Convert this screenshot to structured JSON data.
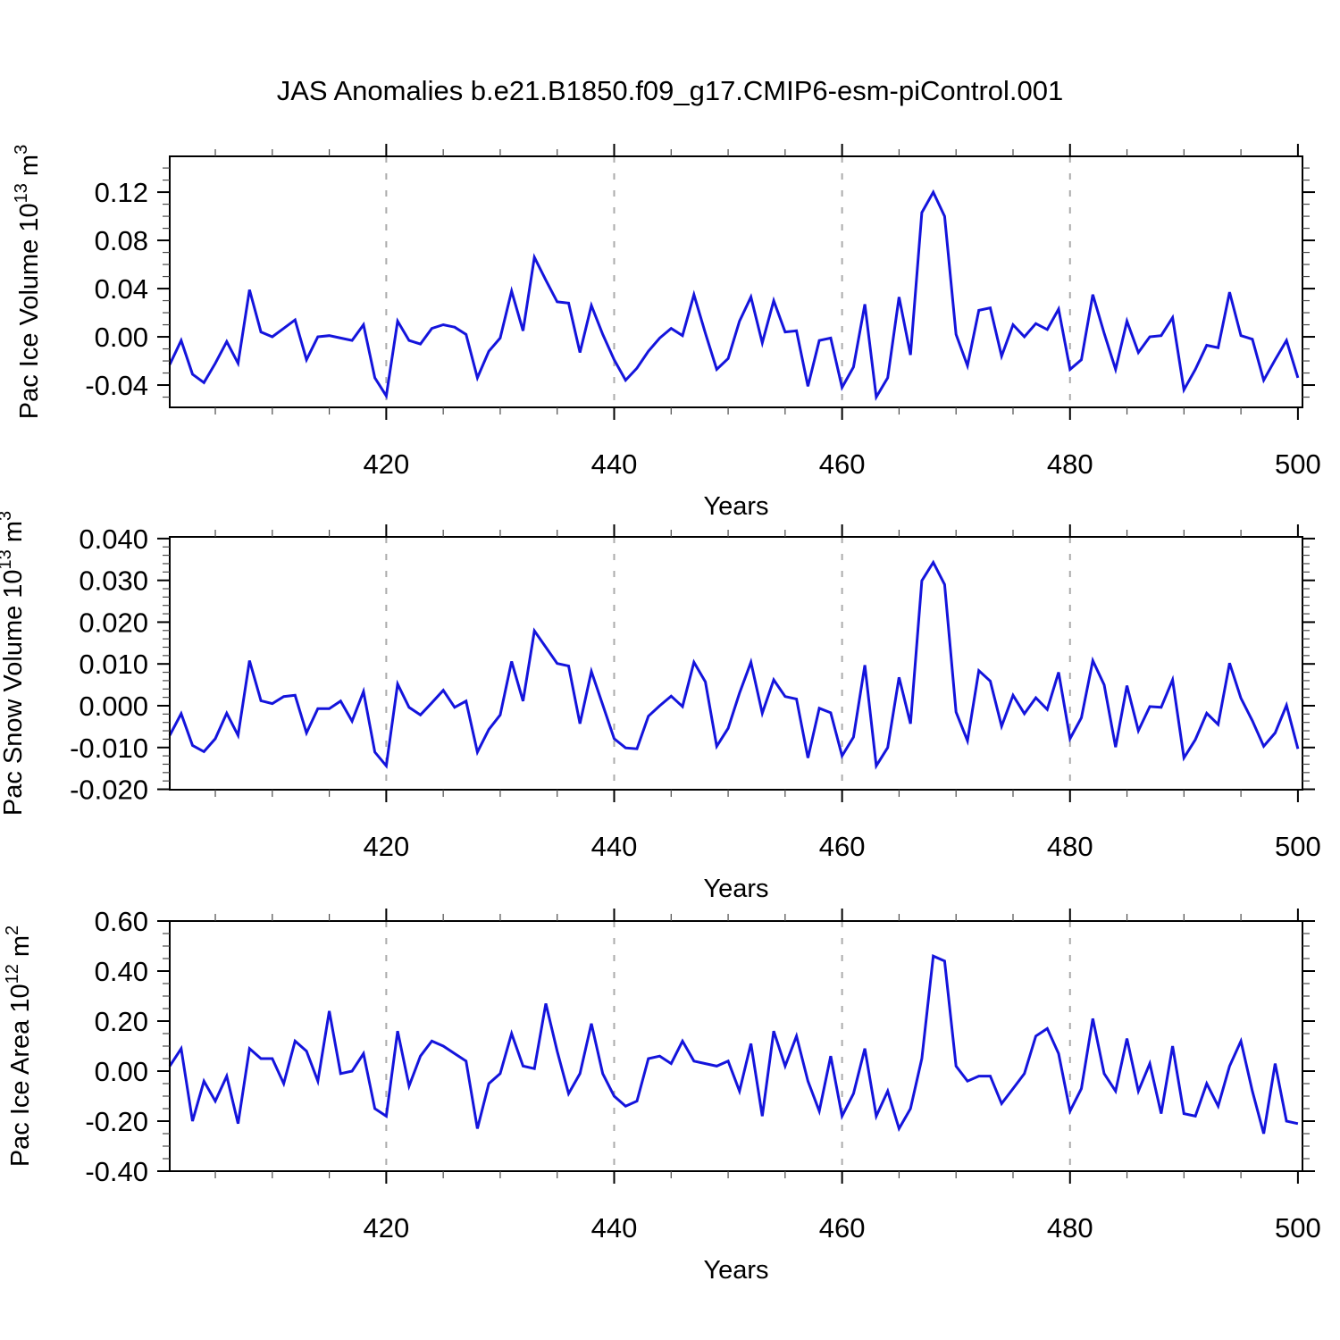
{
  "title": "JAS Anomalies b.e21.B1850.f09_g17.CMIP6-esm-piControl.001",
  "colors": {
    "line": "#1414dc",
    "grid": "#ababab",
    "axis": "#000000"
  },
  "chart_data": {
    "type": "line",
    "title": "JAS Anomalies b.e21.B1850.f09_g17.CMIP6-esm-piControl.001",
    "x_label": "Years",
    "legend": "none",
    "x_ticks": {
      "values": [
        420,
        440,
        460,
        480,
        500
      ],
      "labels": [
        "420",
        "440",
        "460",
        "480",
        "500"
      ],
      "minor_step": 5
    },
    "x_gridlines": [
      420,
      440,
      460,
      480
    ],
    "xlim": [
      401,
      500.4
    ],
    "x": [
      401,
      402,
      403,
      404,
      405,
      406,
      407,
      408,
      409,
      410,
      411,
      412,
      413,
      414,
      415,
      416,
      417,
      418,
      419,
      420,
      421,
      422,
      423,
      424,
      425,
      426,
      427,
      428,
      429,
      430,
      431,
      432,
      433,
      434,
      435,
      436,
      437,
      438,
      439,
      440,
      441,
      442,
      443,
      444,
      445,
      446,
      447,
      448,
      449,
      450,
      451,
      452,
      453,
      454,
      455,
      456,
      457,
      458,
      459,
      460,
      461,
      462,
      463,
      464,
      465,
      466,
      467,
      468,
      469,
      470,
      471,
      472,
      473,
      474,
      475,
      476,
      477,
      478,
      479,
      480,
      481,
      482,
      483,
      484,
      485,
      486,
      487,
      488,
      489,
      490,
      491,
      492,
      493,
      494,
      495,
      496,
      497,
      498,
      499,
      500
    ],
    "panels": [
      {
        "id": "ice-volume",
        "ylabel": "Pac Ice Volume 10^13 m^3",
        "ylabel_rich": [
          {
            "t": "Pac Ice Volume 10"
          },
          {
            "t": "13",
            "sup": true
          },
          {
            "t": " m"
          },
          {
            "t": "3",
            "sup": true
          }
        ],
        "ylim": [
          -0.0585,
          0.1497
        ],
        "y_ticks": {
          "values": [
            0.12,
            0.08,
            0.04,
            0.0,
            -0.04
          ],
          "labels": [
            "0.12",
            "0.08",
            "0.04",
            "0.00",
            "-0.04"
          ]
        },
        "y_minor_step": 0.01,
        "values": [
          -0.023,
          -0.003,
          -0.031,
          -0.038,
          -0.022,
          -0.004,
          -0.022,
          0.039,
          0.004,
          0.0,
          0.007,
          0.014,
          -0.019,
          0.0,
          0.001,
          -0.001,
          -0.003,
          0.01,
          -0.034,
          -0.049,
          0.013,
          -0.003,
          -0.006,
          0.007,
          0.01,
          0.008,
          0.002,
          -0.034,
          -0.012,
          -0.001,
          0.038,
          0.005,
          0.066,
          0.047,
          0.029,
          0.028,
          -0.013,
          0.026,
          0.002,
          -0.019,
          -0.036,
          -0.026,
          -0.012,
          -0.001,
          0.007,
          0.001,
          0.035,
          0.003,
          -0.027,
          -0.018,
          0.013,
          0.033,
          -0.005,
          0.03,
          0.004,
          0.005,
          -0.041,
          -0.003,
          -0.001,
          -0.042,
          -0.025,
          0.027,
          -0.05,
          -0.034,
          0.033,
          -0.015,
          0.103,
          0.12,
          0.1,
          0.002,
          -0.024,
          0.022,
          0.024,
          -0.016,
          0.01,
          0.0,
          0.011,
          0.006,
          0.023,
          -0.027,
          -0.019,
          0.035,
          0.003,
          -0.027,
          0.013,
          -0.013,
          0.0,
          0.001,
          0.016,
          -0.044,
          -0.027,
          -0.007,
          -0.009,
          0.037,
          0.001,
          -0.002,
          -0.036,
          -0.019,
          -0.003,
          -0.034
        ]
      },
      {
        "id": "snow-volume",
        "ylabel": "Pac Snow Volume 10^13 m^3",
        "ylabel_rich": [
          {
            "t": "Pac Snow Volume 10"
          },
          {
            "t": "13",
            "sup": true
          },
          {
            "t": " m"
          },
          {
            "t": "3",
            "sup": true
          }
        ],
        "ylim": [
          -0.0201,
          0.0404
        ],
        "y_ticks": {
          "values": [
            0.04,
            0.03,
            0.02,
            0.01,
            0.0,
            -0.01,
            -0.02
          ],
          "labels": [
            "0.040",
            "0.030",
            "0.020",
            "0.010",
            "0.000",
            "-0.010",
            "-0.020"
          ]
        },
        "y_minor_step": 0.002,
        "values": [
          -0.0071,
          -0.0019,
          -0.0095,
          -0.011,
          -0.0079,
          -0.0018,
          -0.0071,
          0.0108,
          0.0012,
          0.0005,
          0.0022,
          0.0025,
          -0.0065,
          -0.0007,
          -0.0007,
          0.0011,
          -0.0037,
          0.0034,
          -0.0111,
          -0.0144,
          0.0052,
          -0.0004,
          -0.0022,
          0.0007,
          0.0037,
          -0.0004,
          0.0011,
          -0.0111,
          -0.0057,
          -0.0022,
          0.0106,
          0.0011,
          0.0179,
          0.014,
          0.0101,
          0.0095,
          -0.0043,
          0.0082,
          0.0002,
          -0.0079,
          -0.0101,
          -0.0103,
          -0.0025,
          0.0,
          0.0023,
          -0.0002,
          0.0104,
          0.0057,
          -0.0097,
          -0.0054,
          0.003,
          0.0104,
          -0.0018,
          0.0062,
          0.0022,
          0.0016,
          -0.0125,
          -0.0006,
          -0.0017,
          -0.012,
          -0.0075,
          0.0097,
          -0.0144,
          -0.01,
          0.0068,
          -0.0043,
          0.0299,
          0.0343,
          0.029,
          -0.0015,
          -0.0084,
          0.0084,
          0.0059,
          -0.0049,
          0.0025,
          -0.0019,
          0.0019,
          -0.0009,
          0.008,
          -0.0079,
          -0.0029,
          0.0108,
          0.005,
          -0.0099,
          0.0048,
          -0.006,
          -0.0002,
          -0.0004,
          0.0062,
          -0.0125,
          -0.0081,
          -0.0018,
          -0.0045,
          0.0102,
          0.0018,
          -0.0036,
          -0.0097,
          -0.0065,
          0.0001,
          -0.0103
        ]
      },
      {
        "id": "ice-area",
        "ylabel": "Pac Ice Area 10^12 m^2",
        "ylabel_rich": [
          {
            "t": "Pac Ice Area 10"
          },
          {
            "t": "12",
            "sup": true
          },
          {
            "t": " m"
          },
          {
            "t": "2",
            "sup": true
          }
        ],
        "ylim": [
          -0.4,
          0.6
        ],
        "y_ticks": {
          "values": [
            0.6,
            0.4,
            0.2,
            0.0,
            -0.2,
            -0.4
          ],
          "labels": [
            "0.60",
            "0.40",
            "0.20",
            "0.00",
            "-0.20",
            "-0.40"
          ]
        },
        "y_minor_step": 0.05,
        "values": [
          0.02,
          0.09,
          -0.2,
          -0.04,
          -0.12,
          -0.02,
          -0.21,
          0.09,
          0.05,
          0.05,
          -0.05,
          0.12,
          0.08,
          -0.04,
          0.24,
          -0.01,
          0.0,
          0.07,
          -0.15,
          -0.18,
          0.16,
          -0.06,
          0.06,
          0.12,
          0.1,
          0.07,
          0.04,
          -0.23,
          -0.05,
          -0.01,
          0.15,
          0.02,
          0.01,
          0.27,
          0.08,
          -0.09,
          -0.01,
          0.19,
          -0.01,
          -0.1,
          -0.14,
          -0.12,
          0.05,
          0.06,
          0.03,
          0.12,
          0.04,
          0.03,
          0.02,
          0.04,
          -0.08,
          0.11,
          -0.18,
          0.16,
          0.02,
          0.14,
          -0.04,
          -0.16,
          0.06,
          -0.18,
          -0.09,
          0.09,
          -0.18,
          -0.08,
          -0.23,
          -0.15,
          0.05,
          0.46,
          0.44,
          0.02,
          -0.04,
          -0.02,
          -0.02,
          -0.13,
          -0.07,
          -0.01,
          0.14,
          0.17,
          0.07,
          -0.16,
          -0.07,
          0.21,
          -0.01,
          -0.08,
          0.13,
          -0.08,
          0.03,
          -0.17,
          0.1,
          -0.17,
          -0.18,
          -0.05,
          -0.14,
          0.02,
          0.12,
          -0.08,
          -0.25,
          0.03,
          -0.2,
          -0.21
        ]
      }
    ]
  }
}
